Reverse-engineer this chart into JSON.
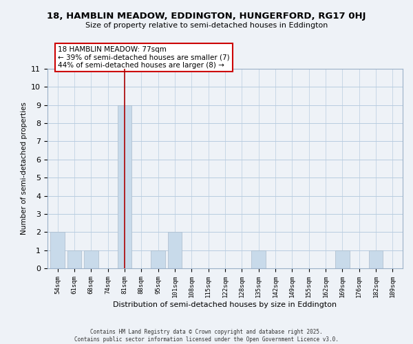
{
  "title": "18, HAMBLIN MEADOW, EDDINGTON, HUNGERFORD, RG17 0HJ",
  "subtitle": "Size of property relative to semi-detached houses in Eddington",
  "xlabel": "Distribution of semi-detached houses by size in Eddington",
  "ylabel": "Number of semi-detached properties",
  "bins": [
    "54sqm",
    "61sqm",
    "68sqm",
    "74sqm",
    "81sqm",
    "88sqm",
    "95sqm",
    "101sqm",
    "108sqm",
    "115sqm",
    "122sqm",
    "128sqm",
    "135sqm",
    "142sqm",
    "149sqm",
    "155sqm",
    "162sqm",
    "169sqm",
    "176sqm",
    "182sqm",
    "189sqm"
  ],
  "counts": [
    2,
    1,
    1,
    0,
    9,
    0,
    1,
    2,
    0,
    0,
    0,
    0,
    1,
    0,
    0,
    0,
    0,
    1,
    0,
    1,
    0
  ],
  "highlight_bin_index": 4,
  "bar_color": "#c8daea",
  "highlight_line_color": "#aa0000",
  "annotation_text_line1": "18 HAMBLIN MEADOW: 77sqm",
  "annotation_text_line2": "← 39% of semi-detached houses are smaller (7)",
  "annotation_text_line3": "44% of semi-detached houses are larger (8) →",
  "ylim": [
    0,
    11
  ],
  "yticks": [
    0,
    1,
    2,
    3,
    4,
    5,
    6,
    7,
    8,
    9,
    10,
    11
  ],
  "bg_color": "#eef2f7",
  "grid_color": "#b8cce0",
  "footer_line1": "Contains HM Land Registry data © Crown copyright and database right 2025.",
  "footer_line2": "Contains public sector information licensed under the Open Government Licence v3.0."
}
